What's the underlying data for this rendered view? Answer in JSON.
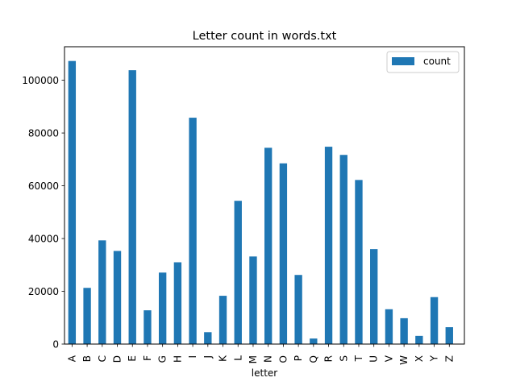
{
  "chart_data": {
    "type": "bar",
    "title": "Letter count in words.txt",
    "xlabel": "letter",
    "ylabel": "",
    "categories": [
      "A",
      "B",
      "C",
      "D",
      "E",
      "F",
      "G",
      "H",
      "I",
      "J",
      "K",
      "L",
      "M",
      "N",
      "O",
      "P",
      "Q",
      "R",
      "S",
      "T",
      "U",
      "V",
      "W",
      "X",
      "Y",
      "Z"
    ],
    "series": [
      {
        "name": "count",
        "color": "#1f77b4",
        "values": [
          107300,
          21300,
          39300,
          35300,
          103800,
          12800,
          27100,
          31000,
          85800,
          4500,
          18300,
          54300,
          33200,
          74400,
          68500,
          26200,
          2100,
          74800,
          71700,
          62200,
          36000,
          13200,
          9800,
          3100,
          17800,
          6400
        ]
      }
    ],
    "ylim": [
      0,
      112700
    ],
    "yticks": [
      0,
      20000,
      40000,
      60000,
      80000,
      100000
    ],
    "ytick_labels": [
      "0",
      "20000",
      "40000",
      "60000",
      "80000",
      "100000"
    ],
    "grid": false,
    "legend": "top-right"
  }
}
